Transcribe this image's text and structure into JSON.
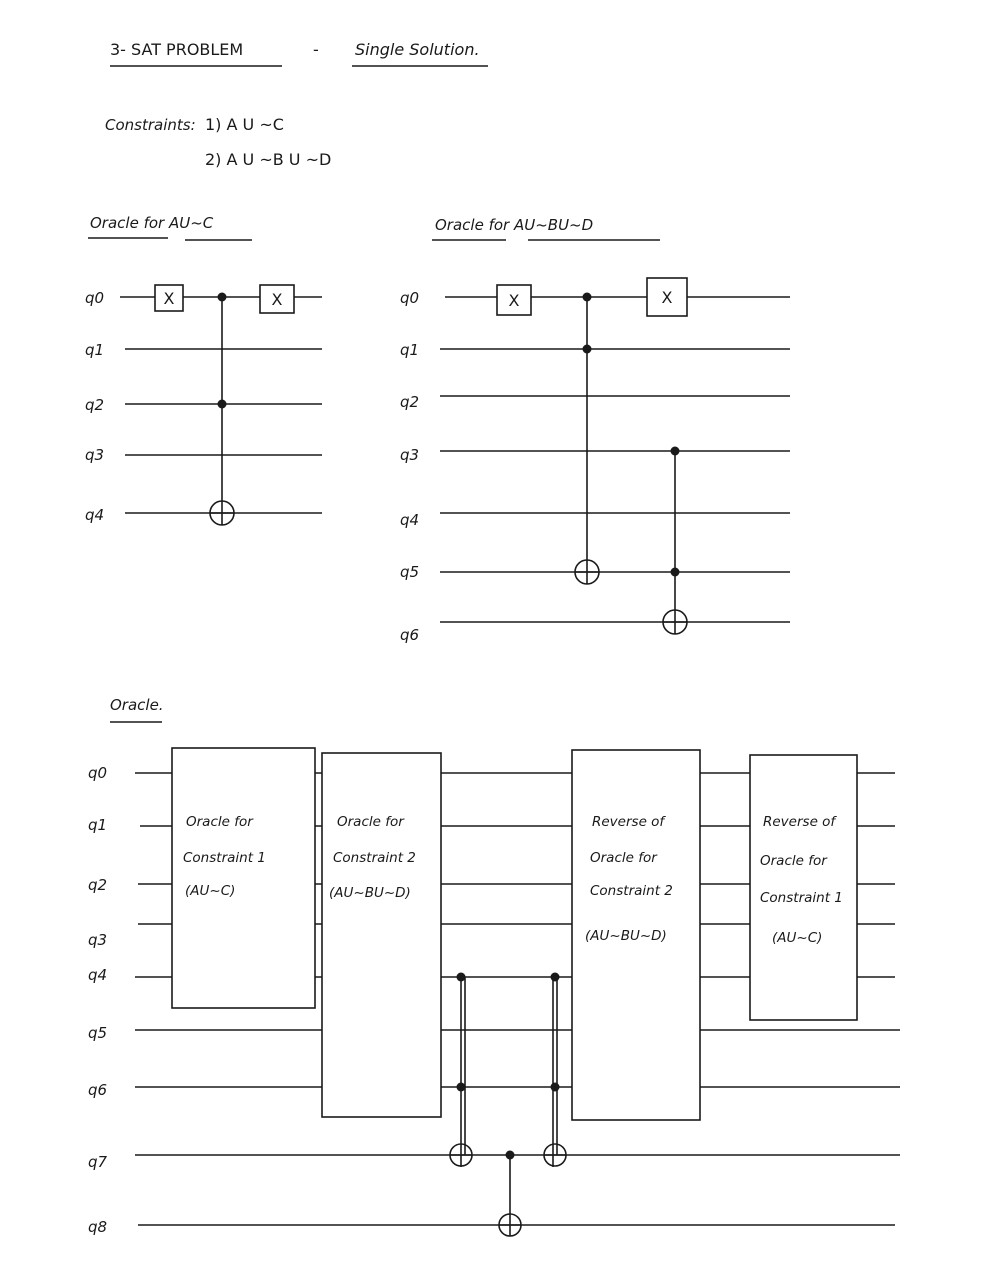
{
  "title": {
    "left": "3- SAT PROBLEM",
    "dash": "-",
    "right": "Single Solution."
  },
  "constraints": {
    "label": "Constraints:",
    "c1": "1)  A U ~C",
    "c2": "2)  A U ~B U ~D"
  },
  "oracle1": {
    "title": "Oracle for  AU~C",
    "qubits": [
      "q0",
      "q1",
      "q2",
      "q3",
      "q4"
    ],
    "x_label": "X"
  },
  "oracle2": {
    "title": "Oracle for  AU~BU~D",
    "qubits": [
      "q0",
      "q1",
      "q2",
      "q3",
      "q4",
      "q5",
      "q6"
    ],
    "x_label": "X"
  },
  "full": {
    "title": "Oracle.",
    "qubits": [
      "q0",
      "q1",
      "q2",
      "q3",
      "q4",
      "q5",
      "q6",
      "q7",
      "q8"
    ],
    "boxes": [
      {
        "lines": [
          "Oracle for",
          "Constraint 1",
          "(AU~C)"
        ]
      },
      {
        "lines": [
          "Oracle for",
          "Constraint 2",
          "(AU~BU~D)"
        ]
      },
      {
        "lines": [
          "Reverse of",
          "Oracle for",
          "Constraint 2",
          "(AU~BU~D)"
        ]
      },
      {
        "lines": [
          "Reverse of",
          "Oracle for",
          "Constraint 1",
          "(AU~C)"
        ]
      }
    ]
  }
}
